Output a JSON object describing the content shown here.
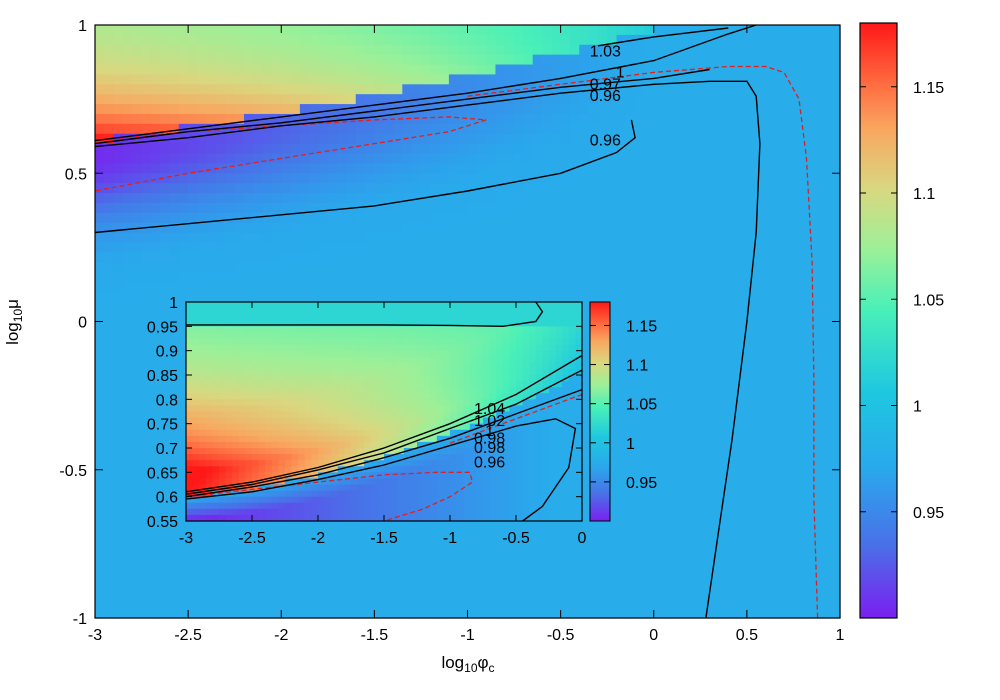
{
  "chart_data": {
    "type": "heatmap",
    "main": {
      "xlabel": {
        "base": "log",
        "sub": "10",
        "sym": "φ",
        "sub2": "c"
      },
      "ylabel": {
        "base": "log",
        "sub": "10",
        "sym": "μ"
      },
      "xlim": [
        -3,
        1
      ],
      "ylim": [
        -1,
        1
      ],
      "xticks": [
        "-3",
        "-2.5",
        "-2",
        "-1.5",
        "-1",
        "-0.5",
        "0",
        "0.5",
        "1"
      ],
      "yticks": [
        "-1",
        "-0.5",
        "0",
        "0.5",
        "1"
      ],
      "color_range": [
        0.9,
        1.18
      ],
      "colorbar_ticks": [
        "0.95",
        "1",
        "1.05",
        "1.1",
        "1.15"
      ],
      "contours": [
        {
          "level": "1.03",
          "points": [
            [
              -0.3,
              0.93
            ],
            [
              0.0,
              0.96
            ],
            [
              0.4,
              0.99
            ]
          ]
        },
        {
          "level": "1",
          "points": [
            [
              -3,
              0.61
            ],
            [
              -2.5,
              0.65
            ],
            [
              -2,
              0.69
            ],
            [
              -1.5,
              0.73
            ],
            [
              -1,
              0.77
            ],
            [
              -0.5,
              0.82
            ],
            [
              0,
              0.88
            ],
            [
              0.4,
              0.97
            ],
            [
              0.55,
              1.0
            ]
          ]
        },
        {
          "level": "0.97",
          "points": [
            [
              -3,
              0.6
            ],
            [
              -2.5,
              0.64
            ],
            [
              -2,
              0.67
            ],
            [
              -1.5,
              0.71
            ],
            [
              -1,
              0.75
            ],
            [
              -0.5,
              0.79
            ],
            [
              0,
              0.82
            ],
            [
              0.3,
              0.85
            ]
          ]
        },
        {
          "level": "0.96",
          "points": [
            [
              -3,
              0.59
            ],
            [
              -2.5,
              0.62
            ],
            [
              -2,
              0.66
            ],
            [
              -1.5,
              0.69
            ],
            [
              -1,
              0.73
            ],
            [
              -0.5,
              0.77
            ],
            [
              0,
              0.8
            ],
            [
              0.3,
              0.81
            ],
            [
              0.5,
              0.81
            ],
            [
              0.55,
              0.76
            ],
            [
              0.57,
              0.6
            ],
            [
              0.55,
              0.3
            ],
            [
              0.5,
              0
            ],
            [
              0.42,
              -0.4
            ],
            [
              0.35,
              -0.7
            ],
            [
              0.28,
              -1.0
            ]
          ]
        },
        {
          "level": "0.96",
          "points": [
            [
              -3,
              0.3
            ],
            [
              -2.5,
              0.33
            ],
            [
              -2,
              0.36
            ],
            [
              -1.5,
              0.39
            ],
            [
              -1,
              0.44
            ],
            [
              -0.5,
              0.5
            ],
            [
              -0.2,
              0.57
            ],
            [
              -0.1,
              0.62
            ],
            [
              -0.12,
              0.68
            ]
          ]
        }
      ],
      "dashed_contours": [
        {
          "points": [
            [
              -3,
              0.61
            ],
            [
              -2.5,
              0.64
            ],
            [
              -2,
              0.66
            ],
            [
              -1.5,
              0.68
            ],
            [
              -1.1,
              0.69
            ],
            [
              -0.9,
              0.68
            ],
            [
              -1.1,
              0.64
            ],
            [
              -1.5,
              0.6
            ],
            [
              -2,
              0.55
            ],
            [
              -2.5,
              0.5
            ],
            [
              -3,
              0.44
            ]
          ]
        },
        {
          "points": [
            [
              -1,
              0.76
            ],
            [
              -0.5,
              0.8
            ],
            [
              0,
              0.84
            ],
            [
              0.4,
              0.86
            ],
            [
              0.6,
              0.86
            ],
            [
              0.7,
              0.84
            ],
            [
              0.78,
              0.75
            ],
            [
              0.82,
              0.55
            ],
            [
              0.85,
              0.2
            ],
            [
              0.86,
              -0.2
            ],
            [
              0.86,
              -0.6
            ],
            [
              0.88,
              -1.0
            ]
          ]
        }
      ],
      "contour_labels": [
        {
          "text": "1.03",
          "x": -0.26,
          "y": 0.91
        },
        {
          "text": "1",
          "x": -0.18,
          "y": 0.84
        },
        {
          "text": "0.97",
          "x": -0.26,
          "y": 0.8
        },
        {
          "text": "0.96",
          "x": -0.26,
          "y": 0.76
        },
        {
          "text": "0.96",
          "x": -0.26,
          "y": 0.61
        }
      ]
    },
    "inset": {
      "xlim": [
        -3,
        0
      ],
      "ylim": [
        0.55,
        1
      ],
      "xticks": [
        "-3",
        "-2.5",
        "-2",
        "-1.5",
        "-1",
        "-0.5",
        "0"
      ],
      "yticks": [
        "0.55",
        "0.6",
        "0.65",
        "0.7",
        "0.75",
        "0.8",
        "0.85",
        "0.9",
        "0.95",
        "1"
      ],
      "color_range": [
        0.9,
        1.18
      ],
      "colorbar_ticks": [
        "0.95",
        "1",
        "1.05",
        "1.1",
        "1.15"
      ],
      "contours": [
        {
          "level": "1.04",
          "points": [
            [
              -3,
              0.61
            ],
            [
              -2.5,
              0.63
            ],
            [
              -2,
              0.66
            ],
            [
              -1.5,
              0.7
            ],
            [
              -1,
              0.75
            ],
            [
              -0.5,
              0.81
            ],
            [
              0,
              0.89
            ]
          ]
        },
        {
          "level": "1.02",
          "points": [
            [
              -3,
              0.605
            ],
            [
              -2.5,
              0.625
            ],
            [
              -2,
              0.655
            ],
            [
              -1.5,
              0.69
            ],
            [
              -1,
              0.74
            ],
            [
              -0.5,
              0.79
            ],
            [
              0,
              0.86
            ]
          ]
        },
        {
          "level": "0.98",
          "points": [
            [
              -3,
              0.6
            ],
            [
              -2.5,
              0.62
            ],
            [
              -2,
              0.645
            ],
            [
              -1.5,
              0.68
            ],
            [
              -1,
              0.72
            ],
            [
              -0.5,
              0.77
            ],
            [
              0,
              0.82
            ]
          ]
        },
        {
          "level": "0.96",
          "points": [
            [
              -3,
              0.595
            ],
            [
              -2.5,
              0.61
            ],
            [
              -2,
              0.635
            ],
            [
              -1.5,
              0.665
            ],
            [
              -1,
              0.705
            ],
            [
              -0.5,
              0.745
            ],
            [
              -0.2,
              0.76
            ],
            [
              -0.05,
              0.74
            ],
            [
              -0.1,
              0.66
            ],
            [
              -0.3,
              0.58
            ],
            [
              -0.45,
              0.55
            ]
          ]
        },
        {
          "level": "",
          "points": [
            [
              -0.35,
              1.0
            ],
            [
              -0.3,
              0.98
            ],
            [
              -0.35,
              0.96
            ],
            [
              -0.6,
              0.95
            ],
            [
              -1,
              0.952
            ],
            [
              -1.5,
              0.953
            ],
            [
              -2,
              0.953
            ],
            [
              -3,
              0.953
            ]
          ]
        }
      ],
      "dashed_contours": [
        {
          "points": [
            [
              -3,
              0.6
            ],
            [
              -2.5,
              0.615
            ],
            [
              -2,
              0.63
            ],
            [
              -1.5,
              0.645
            ],
            [
              -1.1,
              0.65
            ],
            [
              -0.85,
              0.65
            ],
            [
              -0.83,
              0.63
            ],
            [
              -1,
              0.6
            ],
            [
              -1.2,
              0.575
            ],
            [
              -1.5,
              0.55
            ]
          ]
        },
        {
          "points": [
            [
              -1,
              0.71
            ],
            [
              -0.5,
              0.76
            ],
            [
              0,
              0.81
            ]
          ]
        }
      ],
      "contour_labels": [
        {
          "text": "1.04",
          "x": -0.7,
          "y": 0.78
        },
        {
          "text": "1.02",
          "x": -0.7,
          "y": 0.755
        },
        {
          "text": "1",
          "x": -0.7,
          "y": 0.735
        },
        {
          "text": "0.98",
          "x": -0.7,
          "y": 0.72
        },
        {
          "text": "0.98",
          "x": -0.7,
          "y": 0.7
        },
        {
          "text": "0.96",
          "x": -0.7,
          "y": 0.67
        }
      ]
    },
    "colors": {
      "dashed": "#e02020",
      "contour": "#000000"
    }
  }
}
